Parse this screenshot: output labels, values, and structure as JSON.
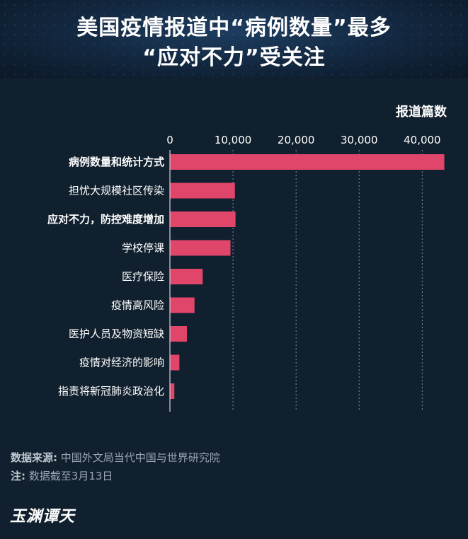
{
  "title": {
    "line1": "美国疫情报道中“病例数量”最多",
    "line2": "“应对不力”受关注"
  },
  "footer": {
    "source_label": "数据来源:",
    "source_text": "中国外文局当代中国与世界研究院",
    "note_label": "注:",
    "note_text": "数据截至3月13日"
  },
  "logo_text": "玉渊谭天",
  "colors": {
    "bar": "#e0456a",
    "background": "#10202e",
    "header": "#12263d",
    "text": "#ffffff",
    "grid": "#8090a0"
  },
  "chart_data": {
    "type": "bar",
    "orientation": "horizontal",
    "xlabel": "报道篇数",
    "xlim": [
      0,
      44000
    ],
    "xticks": [
      0,
      10000,
      20000,
      30000,
      40000
    ],
    "xtick_labels": [
      "0",
      "10,000",
      "20,000",
      "30,000",
      "40,000"
    ],
    "grid": "vertical dotted",
    "categories": [
      "病例数量和统计方式",
      "担忧大规模社区传染",
      "应对不力，防控难度增加",
      "学校停课",
      "医疗保险",
      "疫情高风险",
      "医护人员及物资短缺",
      "疫情对经济的影响",
      "指责将新冠肺炎政治化"
    ],
    "values": [
      43500,
      10300,
      10400,
      9600,
      5200,
      3900,
      2700,
      1500,
      700
    ]
  }
}
